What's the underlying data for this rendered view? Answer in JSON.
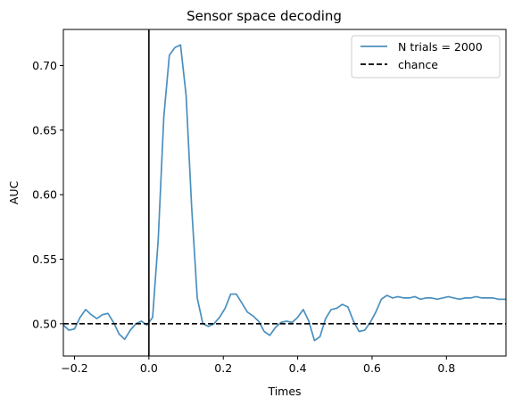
{
  "chart_data": {
    "type": "line",
    "title": "Sensor space decoding",
    "xlabel": "Times",
    "ylabel": "AUC",
    "xlim": [
      -0.23,
      0.96
    ],
    "ylim": [
      0.475,
      0.728
    ],
    "xticks": [
      -0.2,
      0.0,
      0.2,
      0.4,
      0.6,
      0.8
    ],
    "xtick_labels": [
      "−0.2",
      "0.0",
      "0.2",
      "0.4",
      "0.6",
      "0.8"
    ],
    "yticks": [
      0.5,
      0.55,
      0.6,
      0.65,
      0.7
    ],
    "ytick_labels": [
      "0.50",
      "0.55",
      "0.60",
      "0.65",
      "0.70"
    ],
    "grid": false,
    "legend_position": "top-right",
    "series": [
      {
        "name": "N trials = 2000",
        "color": "#4a8fbf",
        "x": [
          -0.23,
          -0.215,
          -0.2,
          -0.185,
          -0.17,
          -0.155,
          -0.14,
          -0.125,
          -0.11,
          -0.095,
          -0.08,
          -0.065,
          -0.05,
          -0.035,
          -0.02,
          -0.005,
          0.01,
          0.025,
          0.04,
          0.055,
          0.07,
          0.085,
          0.1,
          0.115,
          0.13,
          0.145,
          0.16,
          0.175,
          0.19,
          0.205,
          0.22,
          0.235,
          0.25,
          0.265,
          0.28,
          0.295,
          0.31,
          0.325,
          0.34,
          0.355,
          0.37,
          0.385,
          0.4,
          0.415,
          0.43,
          0.445,
          0.46,
          0.475,
          0.49,
          0.505,
          0.52,
          0.535,
          0.55,
          0.565,
          0.58,
          0.595,
          0.61,
          0.625,
          0.64,
          0.655,
          0.67,
          0.685,
          0.7,
          0.715,
          0.73,
          0.745,
          0.76,
          0.775,
          0.79,
          0.805,
          0.82,
          0.835,
          0.85,
          0.865,
          0.88,
          0.895,
          0.91,
          0.925,
          0.94,
          0.96
        ],
        "y": [
          0.499,
          0.495,
          0.496,
          0.505,
          0.511,
          0.507,
          0.504,
          0.507,
          0.508,
          0.501,
          0.492,
          0.488,
          0.495,
          0.5,
          0.502,
          0.499,
          0.505,
          0.565,
          0.66,
          0.708,
          0.714,
          0.716,
          0.677,
          0.59,
          0.52,
          0.5,
          0.498,
          0.5,
          0.505,
          0.512,
          0.523,
          0.523,
          0.516,
          0.509,
          0.506,
          0.502,
          0.494,
          0.491,
          0.497,
          0.501,
          0.502,
          0.501,
          0.505,
          0.511,
          0.502,
          0.487,
          0.49,
          0.504,
          0.511,
          0.512,
          0.515,
          0.513,
          0.502,
          0.494,
          0.495,
          0.501,
          0.509,
          0.519,
          0.522,
          0.52,
          0.521,
          0.52,
          0.52,
          0.521,
          0.519,
          0.52,
          0.52,
          0.519,
          0.52,
          0.521,
          0.52,
          0.519,
          0.52,
          0.52,
          0.521,
          0.52,
          0.52,
          0.52,
          0.519,
          0.519
        ]
      },
      {
        "name": "chance",
        "color": "#000000",
        "style": "dashed",
        "x": [
          -0.23,
          0.96
        ],
        "y": [
          0.5,
          0.5
        ]
      }
    ],
    "vertical_line_x": 0.0
  }
}
